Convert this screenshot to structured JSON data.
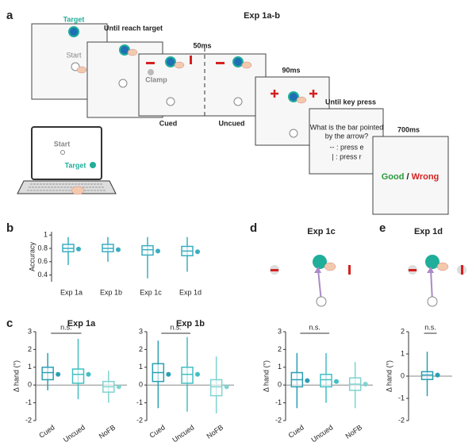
{
  "panel_labels": [
    "a",
    "b",
    "c",
    "d",
    "e"
  ],
  "diagram": {
    "title": "Exp 1a-b",
    "target": "Target",
    "start": "Start",
    "until_reach": "Until reach target",
    "ms50": "50ms",
    "clamp": "Clamp",
    "cued": "Cued",
    "uncued": "Uncued",
    "ms90": "90ms",
    "until_key": "Until key press",
    "question_1": "What is the bar pointed",
    "question_2": "by the arrow?",
    "option_1": "-- : press e",
    "option_2": "| : press r",
    "ms700": "700ms",
    "good": "Good",
    "slash": "/",
    "wrong": "Wrong",
    "laptop_start": "Start",
    "laptop_target": "Target",
    "exp1c_title": "Exp 1c",
    "exp1d_title": "Exp 1d"
  },
  "chart_data": [
    {
      "type": "box",
      "ylabel": "Accuracy",
      "categories": [
        "Exp 1a",
        "Exp 1b",
        "Exp 1c",
        "Exp 1d"
      ],
      "ylim": [
        0.3,
        1.05
      ],
      "yticks": [
        0.4,
        0.6,
        0.8,
        1
      ],
      "boxes": [
        {
          "low": 0.55,
          "q1": 0.75,
          "median": 0.8,
          "q3": 0.86,
          "high": 0.97
        },
        {
          "low": 0.6,
          "q1": 0.75,
          "median": 0.8,
          "q3": 0.86,
          "high": 0.97
        },
        {
          "low": 0.35,
          "q1": 0.7,
          "median": 0.78,
          "q3": 0.84,
          "high": 0.97
        },
        {
          "low": 0.45,
          "q1": 0.69,
          "median": 0.76,
          "q3": 0.83,
          "high": 0.97
        }
      ],
      "means": [
        0.79,
        0.78,
        0.76,
        0.75
      ],
      "colors": [
        "#3aaec0",
        "#3aaec0",
        "#3aaec0",
        "#3aaec0"
      ]
    },
    {
      "type": "box",
      "title": "Exp 1a",
      "ylabel": "Δ hand (°)",
      "categories": [
        "Cued",
        "Uncued",
        "NoFB"
      ],
      "ylim": [
        -2,
        3
      ],
      "yticks": [
        -2,
        -1,
        0,
        1,
        2,
        3
      ],
      "annotation": "n.s.",
      "boxes": [
        {
          "low": -0.3,
          "q1": 0.3,
          "median": 0.7,
          "q3": 1.0,
          "high": 1.8
        },
        {
          "low": -0.8,
          "q1": 0.1,
          "median": 0.6,
          "q3": 0.9,
          "high": 2.6
        },
        {
          "low": -1,
          "q1": -0.4,
          "median": -0.1,
          "q3": 0.2,
          "high": 0.8
        }
      ],
      "means": [
        0.6,
        0.6,
        -0.1
      ],
      "colors": [
        "#2a9fb3",
        "#42bfc4",
        "#7fd3d0"
      ]
    },
    {
      "type": "box",
      "title": "Exp 1b",
      "categories": [
        "Cued",
        "Uncued",
        "NoFB"
      ],
      "ylim": [
        -2,
        3
      ],
      "yticks": [
        -2,
        -1,
        0,
        1,
        2,
        3
      ],
      "annotation": "n.s.",
      "boxes": [
        {
          "low": -1.3,
          "q1": 0.2,
          "median": 0.7,
          "q3": 1.2,
          "high": 2.5
        },
        {
          "low": -1.5,
          "q1": 0.1,
          "median": 0.6,
          "q3": 1.0,
          "high": 2.7
        },
        {
          "low": -1.6,
          "q1": -0.6,
          "median": -0.1,
          "q3": 0.3,
          "high": 1.6
        }
      ],
      "means": [
        0.6,
        0.6,
        -0.1
      ],
      "colors": [
        "#2a9fb3",
        "#42bfc4",
        "#7fd3d0"
      ]
    },
    {
      "type": "box",
      "ylabel": "Δ hand (°)",
      "categories": [
        "Cued",
        "Uncued",
        "NoFB"
      ],
      "ylim": [
        -2,
        3
      ],
      "yticks": [
        -2,
        -1,
        0,
        1,
        2,
        3
      ],
      "annotation": "n.s.",
      "boxes": [
        {
          "low": -1.3,
          "q1": -0.1,
          "median": 0.3,
          "q3": 0.7,
          "high": 1.8
        },
        {
          "low": -1,
          "q1": -0.1,
          "median": 0.3,
          "q3": 0.6,
          "high": 1.8
        },
        {
          "low": -1.3,
          "q1": -0.3,
          "median": 0.05,
          "q3": 0.4,
          "high": 1.3
        }
      ],
      "means": [
        0.25,
        0.2,
        0.05
      ],
      "colors": [
        "#2a9fb3",
        "#42bfc4",
        "#7fd3d0"
      ]
    },
    {
      "type": "box",
      "ylabel": "Δ hand (°)",
      "categories": [
        null
      ],
      "ylim": [
        -2,
        2
      ],
      "yticks": [
        -2,
        -1,
        0,
        1,
        2
      ],
      "annotation": "n.s.",
      "boxes": [
        {
          "low": -0.9,
          "q1": -0.15,
          "median": 0.05,
          "q3": 0.2,
          "high": 1.1
        }
      ],
      "means": [
        0.05
      ],
      "colors": [
        "#2a9fb3"
      ]
    }
  ]
}
